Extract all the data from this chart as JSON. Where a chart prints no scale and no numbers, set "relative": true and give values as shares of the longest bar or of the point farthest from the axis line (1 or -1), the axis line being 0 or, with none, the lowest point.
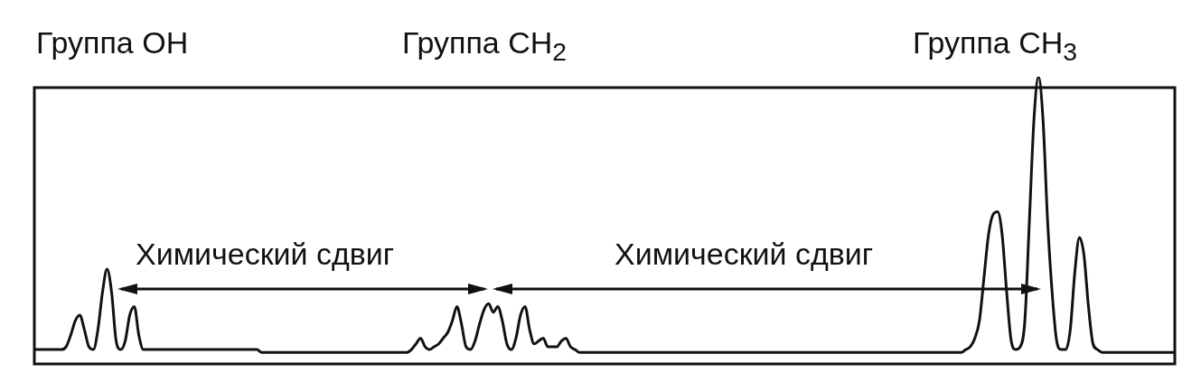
{
  "chart_data": {
    "type": "line",
    "relative": true,
    "grid": false,
    "legend": false,
    "marker": "none",
    "line_style": "solid",
    "categories": [
      null,
      null,
      null,
      null,
      null,
      null,
      null,
      null,
      null,
      null,
      null,
      null,
      null,
      null,
      null,
      null,
      null,
      null,
      null,
      null,
      null,
      null,
      null,
      null,
      null,
      null,
      null,
      null,
      null,
      null,
      null,
      null,
      null,
      null,
      null,
      null,
      null,
      null,
      null,
      null,
      null,
      null,
      null,
      null,
      null,
      null,
      null,
      null,
      null,
      null,
      null,
      null,
      null,
      null,
      null,
      null,
      null,
      null,
      null,
      null,
      null,
      null,
      null,
      null,
      null,
      null,
      null,
      null,
      null,
      null,
      null,
      null,
      null,
      null,
      null,
      null,
      null,
      null,
      null,
      null,
      null,
      null,
      null,
      null,
      null,
      null,
      null,
      null,
      null,
      null,
      null,
      null,
      null,
      null,
      null,
      null,
      null,
      null,
      null,
      null,
      null,
      null,
      null,
      null,
      null,
      null,
      null,
      null,
      null,
      null,
      null,
      null,
      null,
      null,
      null,
      null,
      null,
      null,
      null,
      null,
      null,
      null,
      null,
      null,
      null,
      null,
      null,
      null,
      null,
      null,
      null,
      null,
      null,
      null,
      null,
      null,
      null,
      null,
      null,
      null,
      null,
      null,
      null,
      null,
      null,
      null,
      null,
      null,
      null,
      null,
      null,
      null,
      null,
      null,
      null,
      null,
      null,
      null,
      null,
      null,
      null,
      null,
      null,
      null,
      null,
      null,
      null,
      null,
      null,
      null,
      null,
      null,
      null,
      null,
      null,
      null,
      null,
      null,
      null,
      null,
      null,
      null,
      null,
      null,
      null,
      null,
      null,
      null,
      null,
      null,
      null,
      null,
      null,
      null,
      null,
      null,
      null,
      null,
      null,
      null,
      null,
      null,
      null,
      null,
      null,
      null,
      null,
      null,
      null,
      null,
      null,
      null,
      null,
      null,
      null,
      null,
      null,
      null,
      null,
      null,
      null,
      null,
      null,
      null,
      null,
      null,
      null,
      null,
      null,
      null,
      null,
      null,
      null,
      null,
      null,
      null,
      null,
      null,
      null,
      null,
      null,
      null,
      null,
      null,
      null,
      null,
      null,
      null,
      null,
      null,
      null,
      null
    ],
    "series": [
      {
        "color": "#111111",
        "values": [
          0.05,
          0.05,
          0.05,
          0.05,
          0.05,
          0.05,
          0.05,
          0.06,
          0.1,
          0.15,
          0.17,
          0.12,
          0.06,
          0.05,
          0.12,
          0.25,
          0.33,
          0.25,
          0.08,
          0.05,
          0.08,
          0.17,
          0.2,
          0.1,
          0.05,
          0.05,
          0.05,
          0.05,
          0.05,
          0.05,
          0.05,
          0.05,
          0.05,
          0.05,
          0.05,
          0.05,
          0.05,
          0.05,
          0.05,
          0.05,
          0.05,
          0.05,
          0.05,
          0.05,
          0.05,
          0.05,
          0.05,
          0.05,
          0.05,
          0.05,
          0.04,
          0.04,
          0.04,
          0.04,
          0.04,
          0.04,
          0.04,
          0.04,
          0.04,
          0.04,
          0.04,
          0.04,
          0.04,
          0.04,
          0.04,
          0.04,
          0.04,
          0.04,
          0.04,
          0.04,
          0.04,
          0.04,
          0.04,
          0.04,
          0.04,
          0.04,
          0.04,
          0.04,
          0.04,
          0.04,
          0.04,
          0.04,
          0.04,
          0.05,
          0.07,
          0.09,
          0.06,
          0.05,
          0.06,
          0.07,
          0.09,
          0.11,
          0.15,
          0.2,
          0.14,
          0.06,
          0.05,
          0.08,
          0.14,
          0.19,
          0.21,
          0.18,
          0.2,
          0.15,
          0.07,
          0.05,
          0.09,
          0.17,
          0.2,
          0.12,
          0.07,
          0.08,
          0.09,
          0.06,
          0.06,
          0.06,
          0.08,
          0.09,
          0.06,
          0.05,
          0.04,
          0.04,
          0.04,
          0.04,
          0.04,
          0.04,
          0.04,
          0.04,
          0.04,
          0.04,
          0.04,
          0.04,
          0.04,
          0.04,
          0.04,
          0.04,
          0.04,
          0.04,
          0.04,
          0.04,
          0.04,
          0.04,
          0.04,
          0.04,
          0.04,
          0.04,
          0.04,
          0.04,
          0.04,
          0.04,
          0.04,
          0.04,
          0.04,
          0.04,
          0.04,
          0.04,
          0.04,
          0.04,
          0.04,
          0.04,
          0.04,
          0.04,
          0.04,
          0.04,
          0.04,
          0.04,
          0.04,
          0.04,
          0.04,
          0.04,
          0.04,
          0.04,
          0.04,
          0.04,
          0.04,
          0.04,
          0.04,
          0.04,
          0.04,
          0.04,
          0.04,
          0.04,
          0.04,
          0.04,
          0.04,
          0.04,
          0.04,
          0.04,
          0.04,
          0.04,
          0.04,
          0.04,
          0.04,
          0.04,
          0.04,
          0.04,
          0.04,
          0.04,
          0.04,
          0.04,
          0.04,
          0.04,
          0.04,
          0.04,
          0.04,
          0.05,
          0.06,
          0.09,
          0.15,
          0.3,
          0.45,
          0.52,
          0.53,
          0.45,
          0.25,
          0.08,
          0.05,
          0.06,
          0.15,
          0.5,
          0.85,
          1,
          0.85,
          0.5,
          0.25,
          0.08,
          0.05,
          0.05,
          0.12,
          0.32,
          0.44,
          0.38,
          0.2,
          0.07,
          0.05,
          0.04,
          0.04,
          0.04,
          0.04,
          0.04,
          0.04,
          0.04,
          0.04,
          0.04,
          0.04,
          0.04,
          0.04,
          0.04,
          0.04,
          0.04,
          0.04,
          0.04
        ]
      }
    ],
    "annotations": [
      "Группа OH",
      "Группа CH$_{2}$",
      "Группа CH$_{3}$",
      "Химический сдвиг",
      "Химический сдвиг"
    ]
  }
}
